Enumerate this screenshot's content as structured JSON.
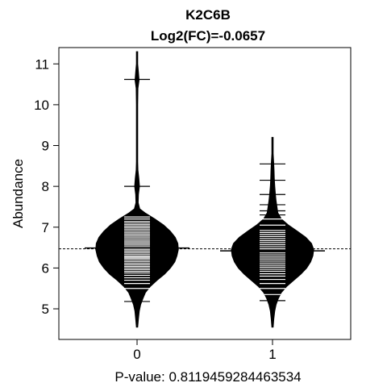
{
  "chart_data": {
    "type": "beanplot",
    "title": "K2C6B",
    "subtitle": "Log2(FC)=-0.0657",
    "ylabel": "Abundance",
    "xlabel": "P-value: 0.8119459284463534",
    "categories": [
      "0",
      "1"
    ],
    "ylim": [
      4.25,
      11.4
    ],
    "yticks": [
      5,
      6,
      7,
      8,
      9,
      10,
      11
    ],
    "grid": false,
    "colors": {
      "bean": "#000000",
      "background": "#ffffff",
      "axis": "#000000"
    },
    "overall_mean": 6.47,
    "groups": [
      {
        "category": "0",
        "mean": 6.49,
        "density": [
          [
            4.55,
            0.0
          ],
          [
            4.75,
            0.03
          ],
          [
            4.95,
            0.05
          ],
          [
            5.1,
            0.08
          ],
          [
            5.25,
            0.13
          ],
          [
            5.4,
            0.19
          ],
          [
            5.55,
            0.3
          ],
          [
            5.7,
            0.45
          ],
          [
            5.85,
            0.62
          ],
          [
            6.0,
            0.75
          ],
          [
            6.15,
            0.85
          ],
          [
            6.3,
            0.9
          ],
          [
            6.45,
            0.93
          ],
          [
            6.6,
            0.92
          ],
          [
            6.75,
            0.86
          ],
          [
            6.9,
            0.75
          ],
          [
            7.05,
            0.6
          ],
          [
            7.2,
            0.4
          ],
          [
            7.35,
            0.18
          ],
          [
            7.45,
            0.06
          ],
          [
            7.6,
            0.025
          ],
          [
            7.8,
            0.03
          ],
          [
            8.0,
            0.055
          ],
          [
            8.2,
            0.04
          ],
          [
            8.4,
            0.02
          ],
          [
            8.6,
            0.004
          ],
          [
            9.0,
            0.002
          ],
          [
            9.5,
            0.002
          ],
          [
            10.0,
            0.003
          ],
          [
            10.4,
            0.02
          ],
          [
            10.6,
            0.045
          ],
          [
            10.8,
            0.03
          ],
          [
            11.0,
            0.015
          ],
          [
            11.3,
            0.0
          ]
        ],
        "points": [
          5.18,
          5.5,
          5.62,
          5.7,
          5.76,
          5.82,
          5.88,
          5.92,
          5.96,
          6.0,
          6.04,
          6.08,
          6.12,
          6.16,
          6.2,
          6.24,
          6.27,
          6.3,
          6.34,
          6.38,
          6.42,
          6.46,
          6.5,
          6.54,
          6.58,
          6.62,
          6.66,
          6.7,
          6.74,
          6.78,
          6.82,
          6.86,
          6.9,
          6.94,
          6.98,
          7.02,
          7.06,
          7.1,
          7.14,
          7.2,
          7.25,
          8.0,
          10.62
        ]
      },
      {
        "category": "1",
        "mean": 6.42,
        "density": [
          [
            4.55,
            0.0
          ],
          [
            4.75,
            0.03
          ],
          [
            4.95,
            0.05
          ],
          [
            5.1,
            0.08
          ],
          [
            5.25,
            0.13
          ],
          [
            5.4,
            0.2
          ],
          [
            5.55,
            0.32
          ],
          [
            5.7,
            0.48
          ],
          [
            5.85,
            0.64
          ],
          [
            6.0,
            0.77
          ],
          [
            6.15,
            0.86
          ],
          [
            6.3,
            0.91
          ],
          [
            6.45,
            0.93
          ],
          [
            6.6,
            0.88
          ],
          [
            6.75,
            0.75
          ],
          [
            6.9,
            0.56
          ],
          [
            7.05,
            0.36
          ],
          [
            7.2,
            0.2
          ],
          [
            7.35,
            0.12
          ],
          [
            7.5,
            0.1
          ],
          [
            7.65,
            0.08
          ],
          [
            7.8,
            0.065
          ],
          [
            8.0,
            0.05
          ],
          [
            8.2,
            0.04
          ],
          [
            8.4,
            0.035
          ],
          [
            8.6,
            0.025
          ],
          [
            8.8,
            0.015
          ],
          [
            9.0,
            0.007
          ],
          [
            9.2,
            0.0
          ]
        ],
        "points": [
          5.2,
          5.35,
          5.5,
          5.62,
          5.72,
          5.8,
          5.86,
          5.92,
          5.97,
          6.02,
          6.07,
          6.12,
          6.17,
          6.22,
          6.27,
          6.32,
          6.37,
          6.42,
          6.47,
          6.52,
          6.57,
          6.62,
          6.67,
          6.72,
          6.77,
          6.82,
          6.87,
          6.92,
          7.05,
          7.2,
          7.3,
          7.4,
          7.55,
          7.8,
          8.15,
          8.55
        ]
      }
    ]
  }
}
